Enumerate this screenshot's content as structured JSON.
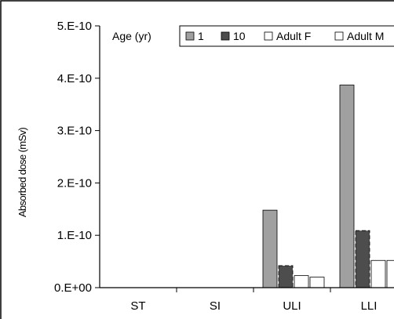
{
  "chart_data": {
    "type": "bar",
    "ylabel": "Absorbed dose (mSv)",
    "xlabel": "",
    "categories": [
      "ST",
      "SI",
      "ULI",
      "LLI"
    ],
    "y_tick_labels": [
      "0.E+00",
      "1.E-10",
      "2.E-10",
      "3.E-10",
      "4.E-10",
      "5.E-10"
    ],
    "ylim": [
      0,
      5e-10
    ],
    "legend_title": "Age (yr)",
    "legend_position": "top-right",
    "series": [
      {
        "name": "1",
        "color": "#a0a0a0",
        "values": [
          0,
          0,
          1.48e-10,
          3.87e-10
        ]
      },
      {
        "name": "10",
        "color": "#4d4d4d",
        "values": [
          0,
          0,
          4.2e-11,
          1.09e-10
        ]
      },
      {
        "name": "Adult F",
        "color": "#ffffff",
        "values": [
          0,
          0,
          2.3e-11,
          5.2e-11
        ]
      },
      {
        "name": "Adult M",
        "color": "#ffffff",
        "values": [
          0,
          0,
          2e-11,
          5.2e-11
        ]
      }
    ]
  }
}
